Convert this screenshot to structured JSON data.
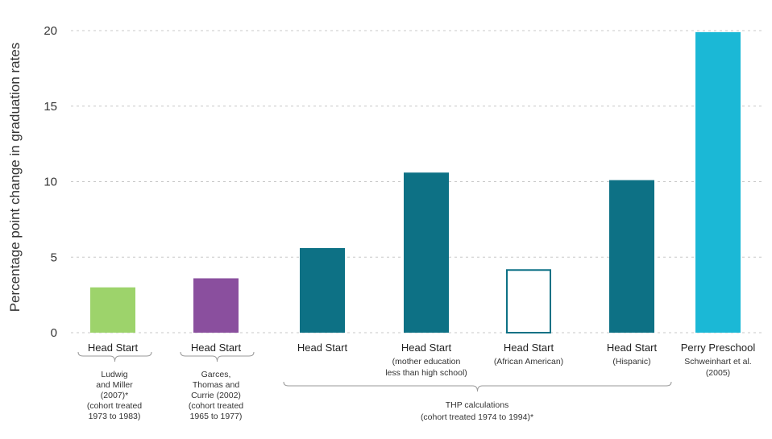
{
  "chart_data": {
    "type": "bar",
    "ylabel": "Percentage point change in graduation rates",
    "ylim": [
      0,
      20
    ],
    "yticks": [
      "0",
      "5",
      "10",
      "15",
      "20"
    ],
    "grid": true,
    "categories": [
      {
        "label": "Head Start",
        "sublabel": [],
        "value": 3.0,
        "color": "#9dd36b",
        "style": "filled"
      },
      {
        "label": "Head Start",
        "sublabel": [],
        "value": 3.6,
        "color": "#8a4f9e",
        "style": "filled"
      },
      {
        "label": "Head Start",
        "sublabel": [],
        "value": 5.6,
        "color": "#0d7185",
        "style": "filled"
      },
      {
        "label": "Head Start",
        "sublabel": [
          "(mother education",
          "less than high school)"
        ],
        "value": 10.6,
        "color": "#0d7185",
        "style": "filled"
      },
      {
        "label": "Head Start",
        "sublabel": [
          "(African American)"
        ],
        "value": 4.2,
        "color": "#0d7185",
        "style": "outline"
      },
      {
        "label": "Head Start",
        "sublabel": [
          "(Hispanic)"
        ],
        "value": 10.1,
        "color": "#0d7185",
        "style": "filled"
      },
      {
        "label": "Perry Preschool",
        "sublabel": [
          "Schweinhart et al.",
          "(2005)"
        ],
        "value": 19.9,
        "color": "#1bb8d6",
        "style": "filled"
      }
    ],
    "groups": [
      {
        "lines": [
          "Ludwig",
          "and Miller",
          "(2007)*",
          "(cohort treated",
          "1973 to 1983)"
        ]
      },
      {
        "lines": [
          "Garces,",
          "Thomas and",
          "Currie (2002)",
          "(cohort treated",
          "1965 to 1977)"
        ]
      },
      {
        "lines": [
          "THP calculations",
          "(cohort treated 1974 to 1994)*"
        ]
      }
    ]
  }
}
